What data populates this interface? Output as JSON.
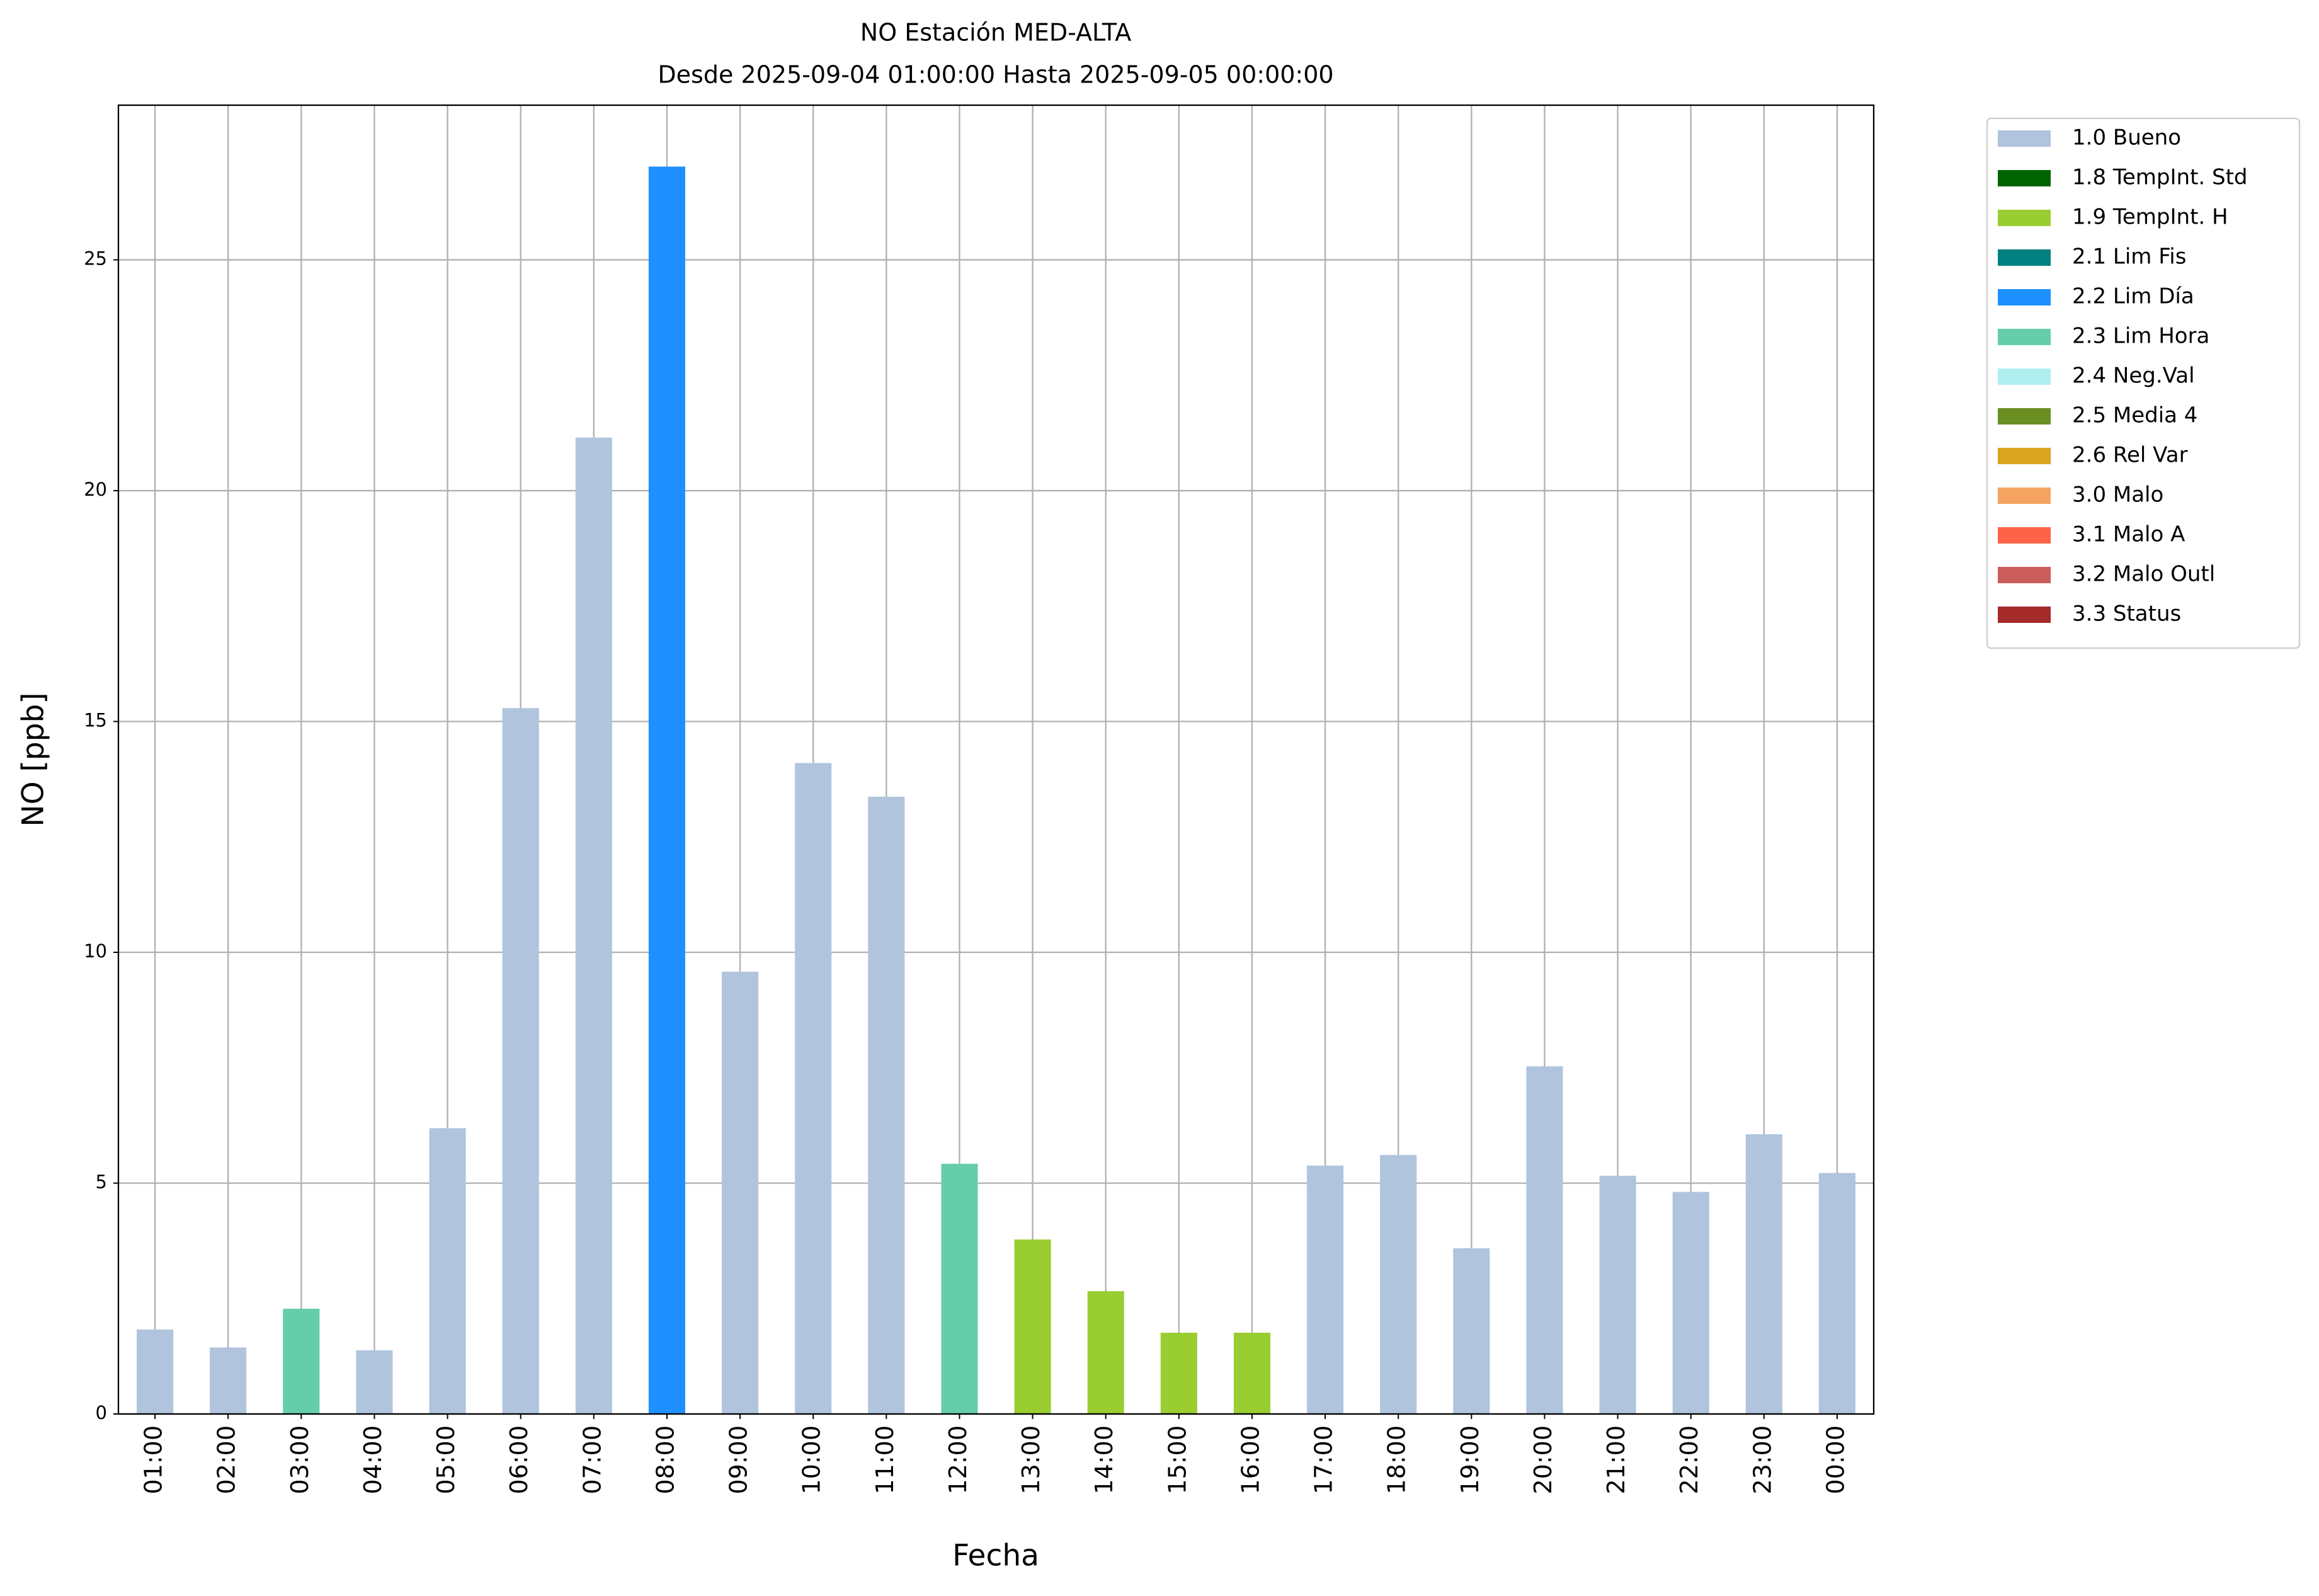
{
  "chart_data": {
    "type": "bar",
    "title": "NO Estación MED-ALTA",
    "subtitle": "Desde 2025-09-04 01:00:00 Hasta 2025-09-05 00:00:00",
    "xlabel": "Fecha",
    "ylabel": "NO [ppb]",
    "categories": [
      "01:00",
      "02:00",
      "03:00",
      "04:00",
      "05:00",
      "06:00",
      "07:00",
      "08:00",
      "09:00",
      "10:00",
      "11:00",
      "12:00",
      "13:00",
      "14:00",
      "15:00",
      "16:00",
      "17:00",
      "18:00",
      "19:00",
      "20:00",
      "21:00",
      "22:00",
      "23:00",
      "00:00"
    ],
    "series": [
      {
        "name": "1.0 Bueno",
        "color": "#b0c4de",
        "values": [
          1.83,
          1.44,
          null,
          1.38,
          6.19,
          15.29,
          21.15,
          null,
          9.58,
          14.1,
          13.37,
          null,
          null,
          null,
          null,
          null,
          5.38,
          5.61,
          3.59,
          7.53,
          5.16,
          4.81,
          6.06,
          5.22
        ]
      },
      {
        "name": "1.8 TempInt. Std",
        "color": "#006400",
        "values": [
          null,
          null,
          null,
          null,
          null,
          null,
          null,
          null,
          null,
          null,
          null,
          null,
          null,
          null,
          null,
          null,
          null,
          null,
          null,
          null,
          null,
          null,
          null,
          null
        ]
      },
      {
        "name": "1.9 TempInt. H",
        "color": "#9acd32",
        "values": [
          null,
          null,
          null,
          null,
          null,
          null,
          null,
          null,
          null,
          null,
          null,
          null,
          3.78,
          2.66,
          1.76,
          1.76,
          null,
          null,
          null,
          null,
          null,
          null,
          null,
          null
        ]
      },
      {
        "name": "2.1 Lim Fis",
        "color": "#008080",
        "values": [
          null,
          null,
          null,
          null,
          null,
          null,
          null,
          null,
          null,
          null,
          null,
          null,
          null,
          null,
          null,
          null,
          null,
          null,
          null,
          null,
          null,
          null,
          null,
          null
        ]
      },
      {
        "name": "2.2 Lim Día",
        "color": "#1e90ff",
        "values": [
          null,
          null,
          null,
          null,
          null,
          null,
          null,
          27.02,
          null,
          null,
          null,
          null,
          null,
          null,
          null,
          null,
          null,
          null,
          null,
          null,
          null,
          null,
          null,
          null
        ]
      },
      {
        "name": "2.3 Lim Hora",
        "color": "#66cdaa",
        "values": [
          null,
          null,
          2.28,
          null,
          null,
          null,
          null,
          null,
          null,
          null,
          null,
          5.42,
          null,
          null,
          null,
          null,
          null,
          null,
          null,
          null,
          null,
          null,
          null,
          null
        ]
      },
      {
        "name": "2.4 Neg.Val",
        "color": "#afeeee",
        "values": [
          null,
          null,
          null,
          null,
          null,
          null,
          null,
          null,
          null,
          null,
          null,
          null,
          null,
          null,
          null,
          null,
          null,
          null,
          null,
          null,
          null,
          null,
          null,
          null
        ]
      },
      {
        "name": "2.5 Media 4",
        "color": "#6b8e23",
        "values": [
          null,
          null,
          null,
          null,
          null,
          null,
          null,
          null,
          null,
          null,
          null,
          null,
          null,
          null,
          null,
          null,
          null,
          null,
          null,
          null,
          null,
          null,
          null,
          null
        ]
      },
      {
        "name": "2.6 Rel Var",
        "color": "#daa520",
        "values": [
          null,
          null,
          null,
          null,
          null,
          null,
          null,
          null,
          null,
          null,
          null,
          null,
          null,
          null,
          null,
          null,
          null,
          null,
          null,
          null,
          null,
          null,
          null,
          null
        ]
      },
      {
        "name": "3.0 Malo",
        "color": "#f4a460",
        "values": [
          null,
          null,
          null,
          null,
          null,
          null,
          null,
          null,
          null,
          null,
          null,
          null,
          null,
          null,
          null,
          null,
          null,
          null,
          null,
          null,
          null,
          null,
          null,
          null
        ]
      },
      {
        "name": "3.1 Malo A",
        "color": "#ff6347",
        "values": [
          null,
          null,
          null,
          null,
          null,
          null,
          null,
          null,
          null,
          null,
          null,
          null,
          null,
          null,
          null,
          null,
          null,
          null,
          null,
          null,
          null,
          null,
          null,
          null
        ]
      },
      {
        "name": "3.2 Malo Outl",
        "color": "#cd5c5c",
        "values": [
          null,
          null,
          null,
          null,
          null,
          null,
          null,
          null,
          null,
          null,
          null,
          null,
          null,
          null,
          null,
          null,
          null,
          null,
          null,
          null,
          null,
          null,
          null,
          null
        ]
      },
      {
        "name": "3.3 Status",
        "color": "#a52a2a",
        "values": [
          null,
          null,
          null,
          null,
          null,
          null,
          null,
          null,
          null,
          null,
          null,
          null,
          null,
          null,
          null,
          null,
          null,
          null,
          null,
          null,
          null,
          null,
          null,
          null
        ]
      }
    ],
    "ylim": [
      0,
      28.35
    ],
    "yticks": [
      0,
      5,
      10,
      15,
      20,
      25
    ],
    "grid": true,
    "legend": "right"
  }
}
